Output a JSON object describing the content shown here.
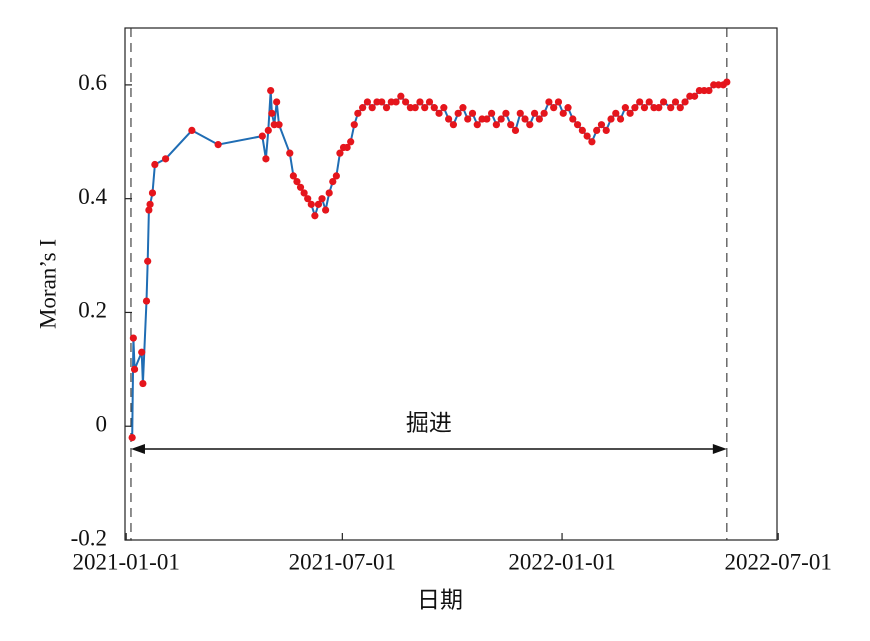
{
  "chart_data": {
    "type": "line",
    "xlabel": "日期",
    "ylabel": "Moran’s I",
    "x": [
      "2021-01-06",
      "2021-01-07",
      "2021-01-08",
      "2021-01-14",
      "2021-01-15",
      "2021-01-18",
      "2021-01-19",
      "2021-01-20",
      "2021-01-21",
      "2021-01-23",
      "2021-01-25",
      "2021-02-03",
      "2021-02-25",
      "2021-03-19",
      "2021-04-25",
      "2021-04-28",
      "2021-04-30",
      "2021-05-02",
      "2021-05-03",
      "2021-05-05",
      "2021-05-07",
      "2021-05-09",
      "2021-05-18",
      "2021-05-21",
      "2021-05-24",
      "2021-05-27",
      "2021-05-30",
      "2021-06-02",
      "2021-06-05",
      "2021-06-08",
      "2021-06-11",
      "2021-06-14",
      "2021-06-17",
      "2021-06-20",
      "2021-06-23",
      "2021-06-26",
      "2021-06-29",
      "2021-07-02",
      "2021-07-05",
      "2021-07-08",
      "2021-07-11",
      "2021-07-14",
      "2021-07-18",
      "2021-07-22",
      "2021-07-26",
      "2021-07-30",
      "2021-08-03",
      "2021-08-07",
      "2021-08-11",
      "2021-08-15",
      "2021-08-19",
      "2021-08-23",
      "2021-08-27",
      "2021-08-31",
      "2021-09-04",
      "2021-09-08",
      "2021-09-12",
      "2021-09-16",
      "2021-09-20",
      "2021-09-24",
      "2021-09-28",
      "2021-10-02",
      "2021-10-06",
      "2021-10-10",
      "2021-10-14",
      "2021-10-18",
      "2021-10-22",
      "2021-10-26",
      "2021-10-30",
      "2021-11-03",
      "2021-11-07",
      "2021-11-11",
      "2021-11-15",
      "2021-11-19",
      "2021-11-23",
      "2021-11-27",
      "2021-12-01",
      "2021-12-05",
      "2021-12-09",
      "2021-12-13",
      "2021-12-17",
      "2021-12-21",
      "2021-12-25",
      "2021-12-29",
      "2022-01-02",
      "2022-01-06",
      "2022-01-10",
      "2022-01-14",
      "2022-01-18",
      "2022-01-22",
      "2022-01-26",
      "2022-01-30",
      "2022-02-03",
      "2022-02-07",
      "2022-02-11",
      "2022-02-15",
      "2022-02-19",
      "2022-02-23",
      "2022-02-27",
      "2022-03-03",
      "2022-03-07",
      "2022-03-11",
      "2022-03-15",
      "2022-03-19",
      "2022-03-23",
      "2022-03-27",
      "2022-04-02",
      "2022-04-06",
      "2022-04-10",
      "2022-04-14",
      "2022-04-18",
      "2022-04-22",
      "2022-04-26",
      "2022-04-30",
      "2022-05-04",
      "2022-05-08",
      "2022-05-12",
      "2022-05-16",
      "2022-05-19"
    ],
    "values": [
      -0.02,
      0.155,
      0.1,
      0.13,
      0.075,
      0.22,
      0.29,
      0.38,
      0.39,
      0.41,
      0.46,
      0.47,
      0.52,
      0.495,
      0.51,
      0.47,
      0.52,
      0.59,
      0.55,
      0.53,
      0.57,
      0.53,
      0.48,
      0.44,
      0.43,
      0.42,
      0.41,
      0.4,
      0.39,
      0.37,
      0.39,
      0.4,
      0.38,
      0.41,
      0.43,
      0.44,
      0.48,
      0.49,
      0.49,
      0.5,
      0.53,
      0.55,
      0.56,
      0.57,
      0.56,
      0.57,
      0.57,
      0.56,
      0.57,
      0.57,
      0.58,
      0.57,
      0.56,
      0.56,
      0.57,
      0.56,
      0.57,
      0.56,
      0.55,
      0.56,
      0.54,
      0.53,
      0.55,
      0.56,
      0.54,
      0.55,
      0.53,
      0.54,
      0.54,
      0.55,
      0.53,
      0.54,
      0.55,
      0.53,
      0.52,
      0.55,
      0.54,
      0.53,
      0.55,
      0.54,
      0.55,
      0.57,
      0.56,
      0.57,
      0.55,
      0.56,
      0.54,
      0.53,
      0.52,
      0.51,
      0.5,
      0.52,
      0.53,
      0.52,
      0.54,
      0.55,
      0.54,
      0.56,
      0.55,
      0.56,
      0.57,
      0.56,
      0.57,
      0.56,
      0.56,
      0.57,
      0.56,
      0.57,
      0.56,
      0.57,
      0.58,
      0.58,
      0.59,
      0.59,
      0.59,
      0.6,
      0.6,
      0.6,
      0.605
    ],
    "color": "#1f6db4",
    "marker_color": "#e5151c",
    "xlim": [
      "2020-12-31",
      "2022-06-30"
    ],
    "xticks": [
      "2021-01-01",
      "2021-07-01",
      "2022-01-01",
      "2022-07-01"
    ],
    "ylim": [
      -0.2,
      0.7
    ],
    "yticks": [
      -0.2,
      0,
      0.2,
      0.4,
      0.6
    ],
    "phase": {
      "label": "掘进",
      "start": "2021-01-05",
      "end": "2022-05-19",
      "y": -0.04
    }
  }
}
